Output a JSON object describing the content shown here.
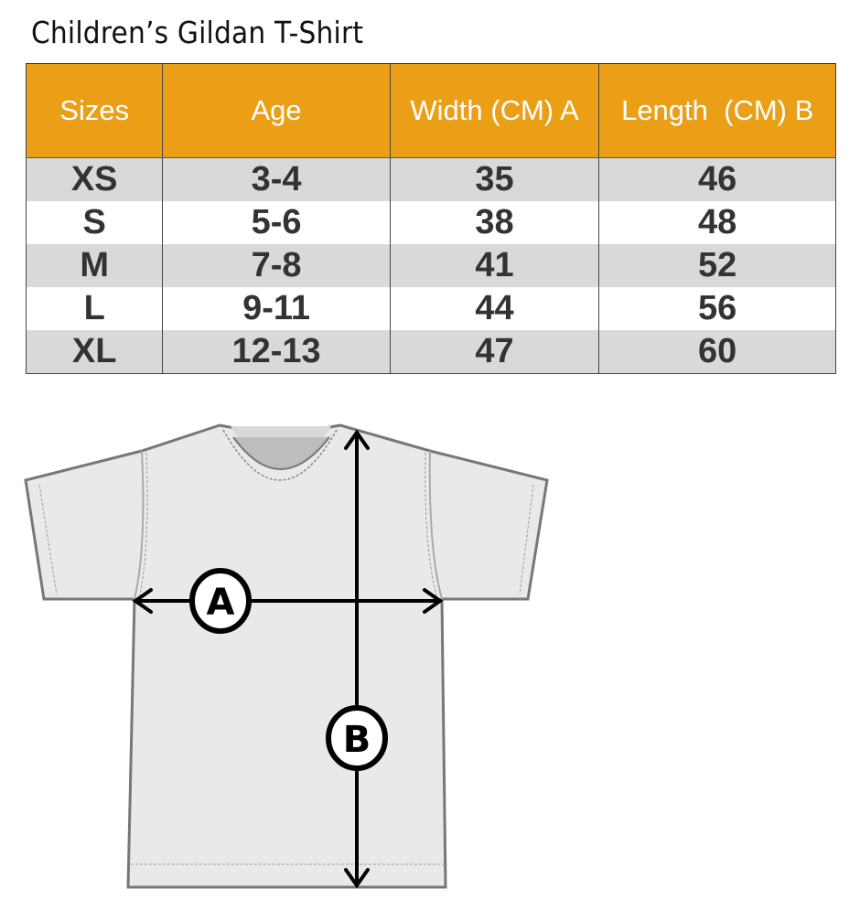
{
  "title": "Children’s Gildan T-Shirt",
  "table": {
    "headers": [
      "Sizes",
      "Age",
      "Width (CM) A",
      "Length  (CM) B"
    ],
    "rows": [
      [
        "XS",
        "3-4",
        "35",
        "46"
      ],
      [
        "S",
        "5-6",
        "38",
        "48"
      ],
      [
        "M",
        "7-8",
        "41",
        "52"
      ],
      [
        "L",
        "9-11",
        "44",
        "56"
      ],
      [
        "XL",
        "12-13",
        "47",
        "60"
      ]
    ]
  },
  "diagram": {
    "width_label": "A",
    "length_label": "B"
  },
  "colors": {
    "header": "#eb9f16",
    "stripe": "#d9d9d9",
    "shirt": "#e9e9e9"
  }
}
